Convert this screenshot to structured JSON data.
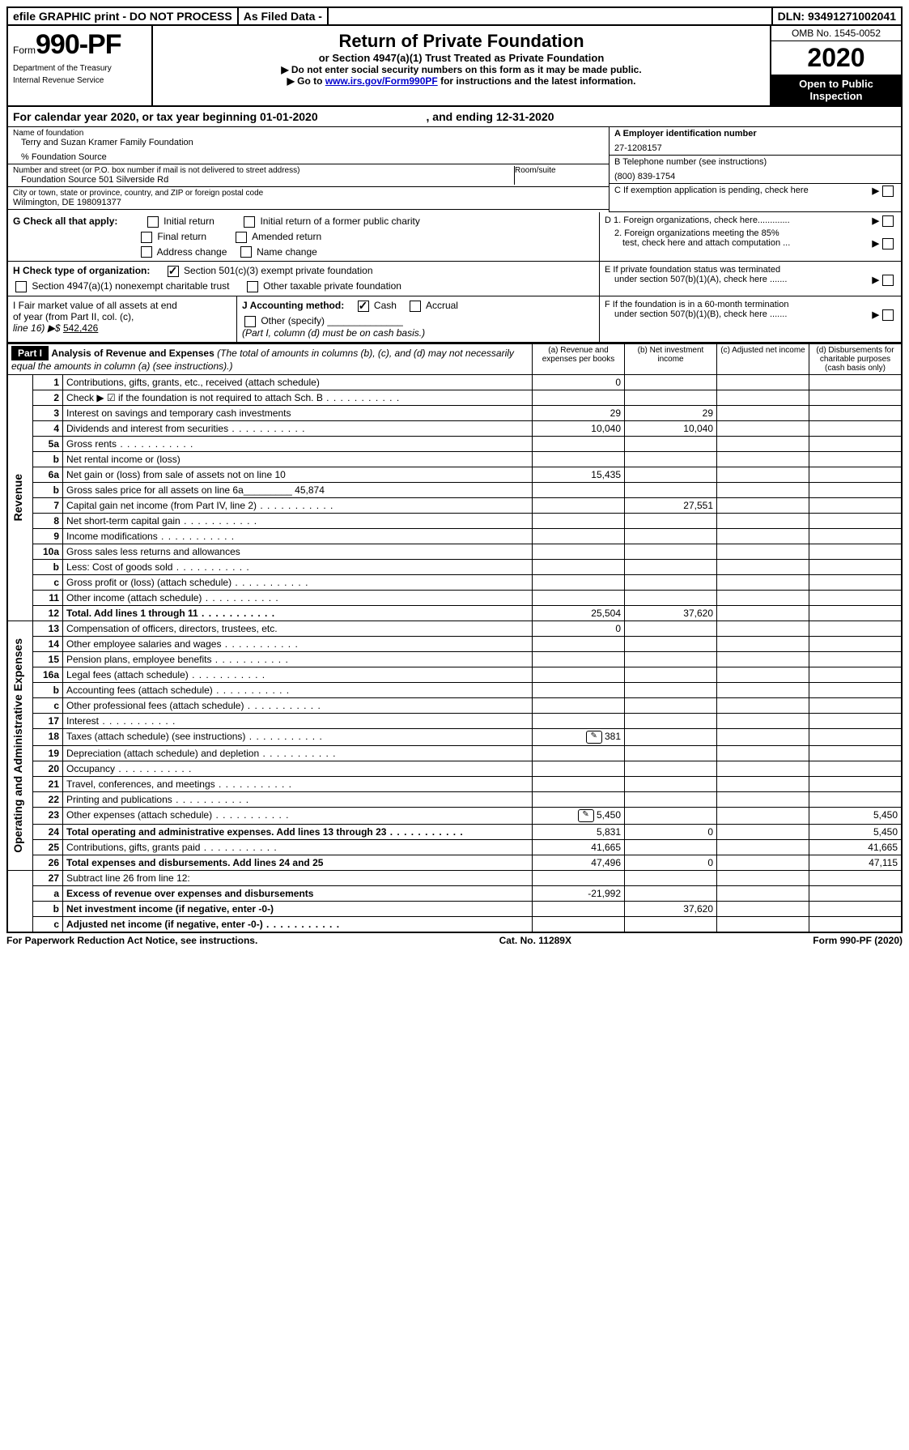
{
  "top": {
    "efile": "efile GRAPHIC print - DO NOT PROCESS",
    "asfiled": "As Filed Data -",
    "dln": "DLN: 93491271002041"
  },
  "header": {
    "form_prefix": "Form",
    "form_no": "990-PF",
    "dept1": "Department of the Treasury",
    "dept2": "Internal Revenue Service",
    "title": "Return of Private Foundation",
    "subtitle": "or Section 4947(a)(1) Trust Treated as Private Foundation",
    "instr1": "▶ Do not enter social security numbers on this form as it may be made public.",
    "instr2_pre": "▶ Go to ",
    "instr2_link": "www.irs.gov/Form990PF",
    "instr2_post": " for instructions and the latest information.",
    "omb": "OMB No. 1545-0052",
    "year": "2020",
    "open": "Open to Public Inspection"
  },
  "cal": {
    "text_a": "For calendar year 2020, or tax year beginning 01-01-2020",
    "text_b": ", and ending 12-31-2020"
  },
  "id": {
    "name_lbl": "Name of foundation",
    "name": "Terry and Suzan Kramer Family Foundation",
    "care": "% Foundation Source",
    "addr_lbl": "Number and street (or P.O. box number if mail is not delivered to street address)",
    "addr": "Foundation Source 501 Silverside Rd",
    "room_lbl": "Room/suite",
    "city_lbl": "City or town, state or province, country, and ZIP or foreign postal code",
    "city": "Wilmington, DE 198091377",
    "a_lbl": "A Employer identification number",
    "a_val": "27-1208157",
    "b_lbl": "B Telephone number (see instructions)",
    "b_val": "(800) 839-1754",
    "c_lbl": "C If exemption application is pending, check here"
  },
  "g": {
    "lbl": "G Check all that apply:",
    "o1": "Initial return",
    "o2": "Initial return of a former public charity",
    "o3": "Final return",
    "o4": "Amended return",
    "o5": "Address change",
    "o6": "Name change"
  },
  "h": {
    "lbl": "H Check type of organization:",
    "o1": "Section 501(c)(3) exempt private foundation",
    "o2": "Section 4947(a)(1) nonexempt charitable trust",
    "o3": "Other taxable private foundation"
  },
  "d": {
    "d1": "D 1. Foreign organizations, check here.............",
    "d2a": "2. Foreign organizations meeting the 85%",
    "d2b": "test, check here and attach computation ...",
    "e1": "E  If private foundation status was terminated",
    "e2": "under section 507(b)(1)(A), check here .......",
    "f1": "F  If the foundation is in a 60-month termination",
    "f2": "under section 507(b)(1)(B), check here ......."
  },
  "i": {
    "lbl1": "I Fair market value of all assets at end",
    "lbl2": "of year (from Part II, col. (c),",
    "lbl3": "line 16) ▶$",
    "val": "542,426"
  },
  "j": {
    "lbl": "J Accounting method:",
    "o1": "Cash",
    "o2": "Accrual",
    "o3": "Other (specify)",
    "note": "(Part I, column (d) must be on cash basis.)"
  },
  "part1": {
    "label": "Part I",
    "title": "Analysis of Revenue and Expenses",
    "title_note": " (The total of amounts in columns (b), (c), and (d) may not necessarily equal the amounts in column (a) (see instructions).)",
    "col_a": "(a) Revenue and expenses per books",
    "col_b": "(b) Net investment income",
    "col_c": "(c) Adjusted net income",
    "col_d": "(d) Disbursements for charitable purposes (cash basis only)"
  },
  "sections": {
    "revenue": "Revenue",
    "opex": "Operating and Administrative Expenses"
  },
  "rows": [
    {
      "n": "1",
      "d": "Contributions, gifts, grants, etc., received (attach schedule)",
      "a": "0"
    },
    {
      "n": "2",
      "d": "Check ▶ ☑ if the foundation is not required to attach Sch. B",
      "dots": true
    },
    {
      "n": "3",
      "d": "Interest on savings and temporary cash investments",
      "a": "29",
      "b": "29"
    },
    {
      "n": "4",
      "d": "Dividends and interest from securities",
      "a": "10,040",
      "b": "10,040",
      "dots": true
    },
    {
      "n": "5a",
      "d": "Gross rents",
      "dots": true
    },
    {
      "n": "b",
      "d": "Net rental income or (loss)"
    },
    {
      "n": "6a",
      "d": "Net gain or (loss) from sale of assets not on line 10",
      "a": "15,435"
    },
    {
      "n": "b",
      "d": "Gross sales price for all assets on line 6a_________ 45,874"
    },
    {
      "n": "7",
      "d": "Capital gain net income (from Part IV, line 2)",
      "b": "27,551",
      "dots": true
    },
    {
      "n": "8",
      "d": "Net short-term capital gain",
      "dots": true
    },
    {
      "n": "9",
      "d": "Income modifications",
      "dots": true
    },
    {
      "n": "10a",
      "d": "Gross sales less returns and allowances"
    },
    {
      "n": "b",
      "d": "Less: Cost of goods sold",
      "dots": true
    },
    {
      "n": "c",
      "d": "Gross profit or (loss) (attach schedule)",
      "dots": true
    },
    {
      "n": "11",
      "d": "Other income (attach schedule)",
      "dots": true
    },
    {
      "n": "12",
      "d": "Total. Add lines 1 through 11",
      "a": "25,504",
      "b": "37,620",
      "bold": true,
      "dots": true
    }
  ],
  "exp_rows": [
    {
      "n": "13",
      "d": "Compensation of officers, directors, trustees, etc.",
      "a": "0"
    },
    {
      "n": "14",
      "d": "Other employee salaries and wages",
      "dots": true
    },
    {
      "n": "15",
      "d": "Pension plans, employee benefits",
      "dots": true
    },
    {
      "n": "16a",
      "d": "Legal fees (attach schedule)",
      "dots": true
    },
    {
      "n": "b",
      "d": "Accounting fees (attach schedule)",
      "dots": true
    },
    {
      "n": "c",
      "d": "Other professional fees (attach schedule)",
      "dots": true
    },
    {
      "n": "17",
      "d": "Interest",
      "dots": true
    },
    {
      "n": "18",
      "d": "Taxes (attach schedule) (see instructions)",
      "a": "381",
      "icon": true,
      "dots": true
    },
    {
      "n": "19",
      "d": "Depreciation (attach schedule) and depletion",
      "dots": true
    },
    {
      "n": "20",
      "d": "Occupancy",
      "dots": true
    },
    {
      "n": "21",
      "d": "Travel, conferences, and meetings",
      "dots": true
    },
    {
      "n": "22",
      "d": "Printing and publications",
      "dots": true
    },
    {
      "n": "23",
      "d": "Other expenses (attach schedule)",
      "a": "5,450",
      "dd": "5,450",
      "icon": true,
      "dots": true
    },
    {
      "n": "24",
      "d": "Total operating and administrative expenses. Add lines 13 through 23",
      "a": "5,831",
      "b": "0",
      "dd": "5,450",
      "bold": true,
      "dots": true
    },
    {
      "n": "25",
      "d": "Contributions, gifts, grants paid",
      "a": "41,665",
      "dd": "41,665",
      "dots": true
    },
    {
      "n": "26",
      "d": "Total expenses and disbursements. Add lines 24 and 25",
      "a": "47,496",
      "b": "0",
      "dd": "47,115",
      "bold": true
    }
  ],
  "sum_rows": [
    {
      "n": "27",
      "d": "Subtract line 26 from line 12:"
    },
    {
      "n": "a",
      "d": "Excess of revenue over expenses and disbursements",
      "a": "-21,992",
      "bold": true
    },
    {
      "n": "b",
      "d": "Net investment income (if negative, enter -0-)",
      "b": "37,620",
      "bold": true
    },
    {
      "n": "c",
      "d": "Adjusted net income (if negative, enter -0-)",
      "bold": true,
      "dots": true
    }
  ],
  "footer": {
    "left": "For Paperwork Reduction Act Notice, see instructions.",
    "mid": "Cat. No. 11289X",
    "right": "Form 990-PF (2020)"
  }
}
